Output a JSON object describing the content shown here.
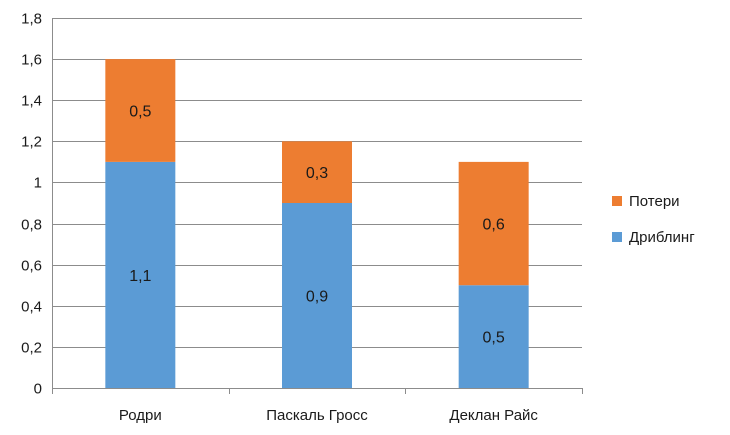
{
  "chart_data": {
    "type": "bar",
    "stacked": true,
    "title": "",
    "xlabel": "",
    "ylabel": "",
    "categories": [
      "Родри",
      "Паскаль Гросс",
      "Деклан Райс"
    ],
    "series": [
      {
        "name": "Дриблинг",
        "color": "#5b9bd5",
        "values": [
          1.1,
          0.9,
          0.5
        ],
        "labels": [
          "1,1",
          "0,9",
          "0,5"
        ]
      },
      {
        "name": "Потери",
        "color": "#ed7d31",
        "values": [
          0.5,
          0.3,
          0.6
        ],
        "labels": [
          "0,5",
          "0,3",
          "0,6"
        ]
      }
    ],
    "ylim": [
      0,
      1.8
    ],
    "yticks": [
      0,
      0.2,
      0.4,
      0.6,
      0.8,
      1,
      1.2,
      1.4,
      1.6,
      1.8
    ],
    "ytick_labels": [
      "0",
      "0,2",
      "0,4",
      "0,6",
      "0,8",
      "1",
      "1,2",
      "1,4",
      "1,6",
      "1,8"
    ],
    "grid": true,
    "legend_position": "right",
    "legend_order": [
      "Потери",
      "Дриблинг"
    ]
  }
}
